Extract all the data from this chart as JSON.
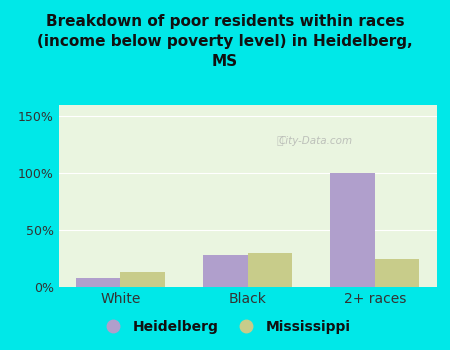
{
  "title": "Breakdown of poor residents within races\n(income below poverty level) in Heidelberg,\nMS",
  "categories": [
    "White",
    "Black",
    "2+ races"
  ],
  "heidelberg_values": [
    8,
    28,
    100
  ],
  "mississippi_values": [
    13,
    30,
    25
  ],
  "heidelberg_color": "#b09fcc",
  "mississippi_color": "#c8cc8a",
  "background_outer": "#00e8e8",
  "background_plot": "#eaf5e0",
  "ylim": [
    0,
    160
  ],
  "yticks": [
    0,
    50,
    100,
    150
  ],
  "ytick_labels": [
    "0%",
    "50%",
    "100%",
    "150%"
  ],
  "bar_width": 0.35,
  "watermark": "City-Data.com"
}
